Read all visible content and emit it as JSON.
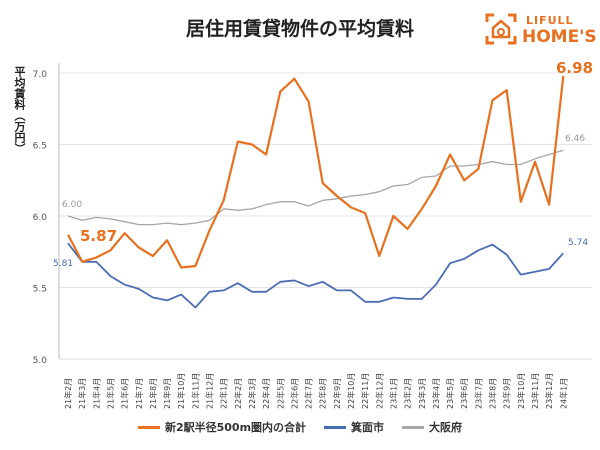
{
  "title": "居住用賃貸物件の平均賃料",
  "logo": {
    "line1": "LIFULL",
    "line2": "HOME'S",
    "color": "#e8701e"
  },
  "chart_data": {
    "type": "line",
    "title": "居住用賃貸物件の平均賃料",
    "ylabel": "平均賃料（万円）",
    "xlabel": "",
    "ylim": [
      5.0,
      7.0
    ],
    "yticks": [
      "5.0",
      "5.5",
      "6.0",
      "6.5",
      "7.0"
    ],
    "grid": true,
    "legend": "bottom",
    "categories": [
      "21年2月",
      "21年3月",
      "21年4月",
      "21年5月",
      "21年6月",
      "21年7月",
      "21年8月",
      "21年9月",
      "21年10月",
      "21年11月",
      "21年12月",
      "22年1月",
      "22年2月",
      "22年3月",
      "22年4月",
      "22年5月",
      "22年6月",
      "22年7月",
      "22年8月",
      "22年9月",
      "22年10月",
      "22年11月",
      "22年12月",
      "23年1月",
      "23年2月",
      "23年3月",
      "23年4月",
      "23年5月",
      "23年6月",
      "23年7月",
      "23年8月",
      "23年9月",
      "23年10月",
      "23年11月",
      "23年12月",
      "24年1月"
    ],
    "series": [
      {
        "name": "新2駅半径500m圏内の合計",
        "color": "#e8701e",
        "first_label": "5.87",
        "last_label": "6.98",
        "values": [
          5.87,
          5.68,
          5.71,
          5.76,
          5.88,
          5.78,
          5.72,
          5.83,
          5.64,
          5.65,
          5.9,
          6.11,
          6.52,
          6.5,
          6.43,
          6.87,
          6.96,
          6.8,
          6.23,
          6.14,
          6.06,
          6.02,
          5.72,
          6.0,
          5.91,
          6.05,
          6.21,
          6.43,
          6.25,
          6.33,
          6.81,
          6.88,
          6.1,
          6.38,
          6.08,
          6.98
        ]
      },
      {
        "name": "箕面市",
        "color": "#4a6cb3",
        "first_label": "5.81",
        "last_label": "5.74",
        "values": [
          5.81,
          5.68,
          5.68,
          5.58,
          5.52,
          5.49,
          5.43,
          5.41,
          5.45,
          5.36,
          5.47,
          5.48,
          5.53,
          5.47,
          5.47,
          5.54,
          5.55,
          5.51,
          5.54,
          5.48,
          5.48,
          5.4,
          5.4,
          5.43,
          5.42,
          5.42,
          5.52,
          5.67,
          5.7,
          5.76,
          5.8,
          5.73,
          5.59,
          5.61,
          5.63,
          5.74
        ]
      },
      {
        "name": "大阪府",
        "color": "#a6a6a6",
        "first_label": "6.00",
        "last_label": "6.46",
        "values": [
          6.0,
          5.97,
          5.99,
          5.98,
          5.96,
          5.94,
          5.94,
          5.95,
          5.94,
          5.95,
          5.97,
          6.05,
          6.04,
          6.05,
          6.08,
          6.1,
          6.1,
          6.07,
          6.11,
          6.12,
          6.14,
          6.15,
          6.17,
          6.21,
          6.22,
          6.27,
          6.28,
          6.35,
          6.35,
          6.36,
          6.38,
          6.36,
          6.36,
          6.4,
          6.43,
          6.46
        ]
      }
    ]
  }
}
